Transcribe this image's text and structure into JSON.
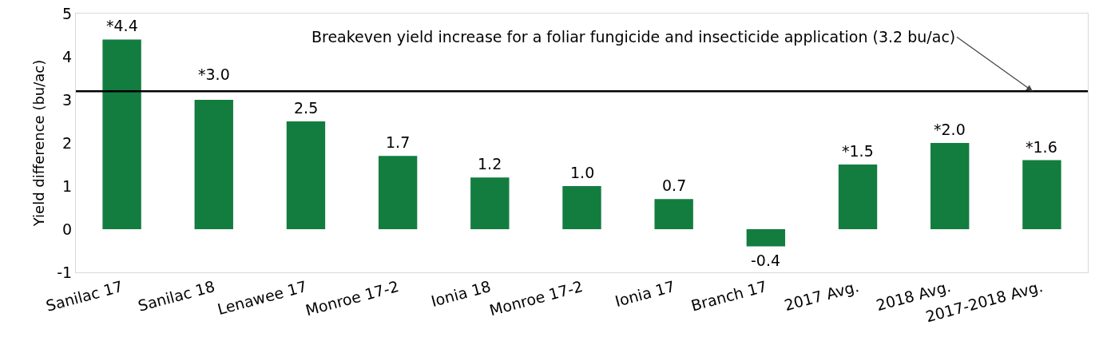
{
  "chart_data": {
    "type": "bar",
    "ylabel": "Yield difference (bu/ac)",
    "categories": [
      "Sanilac 17",
      "Sanilac 18",
      "Lenawee 17",
      "Monroe 17-2",
      "Ionia 18",
      "Monroe 17-2",
      "Ionia 17",
      "Branch 17",
      "2017 Avg.",
      "2018 Avg.",
      "2017-2018 Avg."
    ],
    "values": [
      4.4,
      3.0,
      2.5,
      1.7,
      1.2,
      1.0,
      0.7,
      -0.4,
      1.5,
      2.0,
      1.6
    ],
    "value_labels": [
      "*4.4",
      "*3.0",
      "2.5",
      "1.7",
      "1.2",
      "1.0",
      "0.7",
      "-0.4",
      "*1.5",
      "*2.0",
      "*1.6"
    ],
    "color": "#127d3f",
    "ylim": [
      -1,
      5
    ],
    "yticks": [
      -1,
      0,
      1,
      2,
      3,
      4,
      5
    ],
    "grid": false,
    "ref_lines": [
      {
        "axis": "y",
        "value": 3.2,
        "label": "Breakeven yield increase for a foliar fungicide and insecticide application (3.2 bu/ac)",
        "color": "#000000"
      }
    ]
  }
}
